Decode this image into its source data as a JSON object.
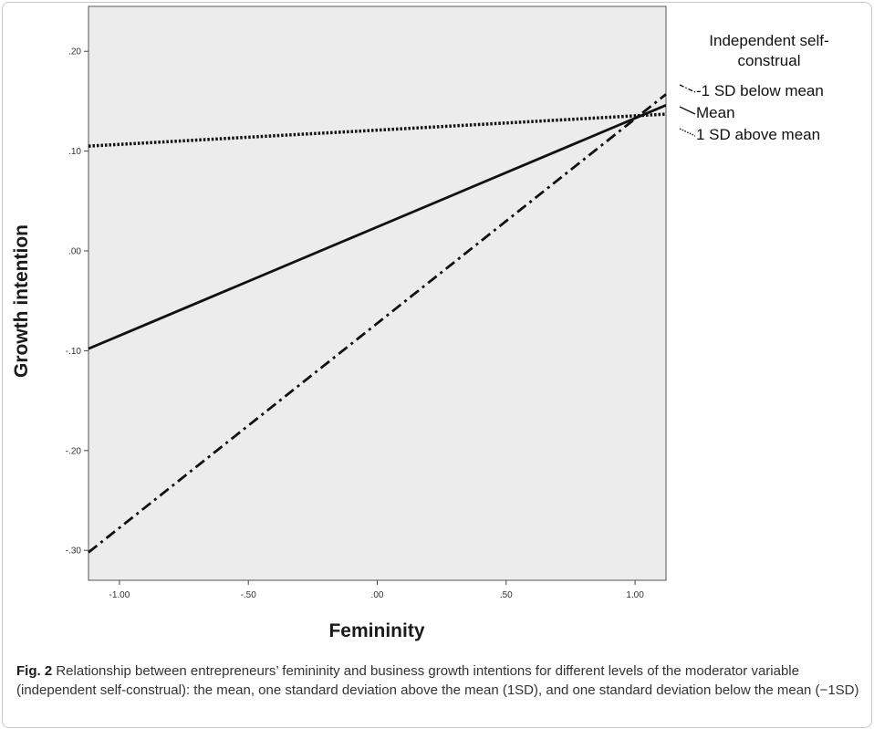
{
  "chart_data": {
    "type": "line",
    "title": "",
    "xlabel": "Femininity",
    "ylabel": "Growth intention",
    "xlim": [
      -1.12,
      1.12
    ],
    "ylim": [
      -0.33,
      0.245
    ],
    "x_ticks": [
      -1.0,
      -0.5,
      0.0,
      0.5,
      1.0
    ],
    "x_tick_labels": [
      "-1.00",
      "-.50",
      ".00",
      ".50",
      "1.00"
    ],
    "y_ticks": [
      -0.3,
      -0.2,
      -0.1,
      0.0,
      0.1,
      0.2
    ],
    "y_tick_labels": [
      "-.30",
      "-.20",
      "-.10",
      ".00",
      ".10",
      ".20"
    ],
    "legend": {
      "title": "Independent self-construal",
      "title_lines": [
        "Independent self-",
        "construal"
      ],
      "placement": "right"
    },
    "grid": false,
    "background": "#ececec",
    "series": [
      {
        "name": "-1 SD below mean",
        "style": "dash-dot",
        "x": [
          -1.12,
          1.12
        ],
        "y": [
          -0.302,
          0.157
        ]
      },
      {
        "name": "Mean",
        "style": "solid",
        "x": [
          -1.12,
          1.12
        ],
        "y": [
          -0.098,
          0.146
        ]
      },
      {
        "name": "1 SD above mean",
        "style": "dotted",
        "x": [
          -1.12,
          1.12
        ],
        "y": [
          0.105,
          0.137
        ]
      }
    ]
  },
  "caption": {
    "label": "Fig. 2",
    "text": " Relationship between entrepreneurs’ femininity and business growth intentions for different levels of the moderator variable (independent self-construal): the mean, one standard deviation above the mean (1SD), and one standard deviation below the mean (−1SD)"
  }
}
